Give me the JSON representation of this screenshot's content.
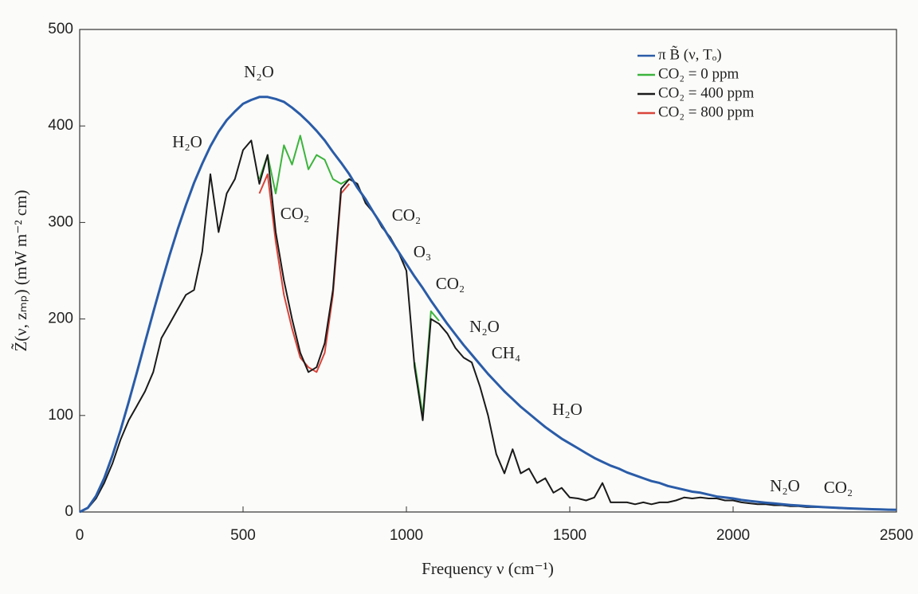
{
  "chart_data": {
    "type": "line",
    "xlabel": "Frequency ν (cm⁻¹)",
    "ylabel": "Z̃(ν, zₘₚ) (mW m⁻² cm)",
    "xlim": [
      0,
      2500
    ],
    "xticks": [
      0,
      500,
      1000,
      1500,
      2000,
      2500
    ],
    "ylim": [
      0,
      500
    ],
    "yticks": [
      0,
      100,
      200,
      300,
      400,
      500
    ],
    "grid": false,
    "legend": "upper right",
    "x": [
      0,
      25,
      50,
      75,
      100,
      125,
      150,
      175,
      200,
      225,
      250,
      275,
      300,
      325,
      350,
      375,
      400,
      425,
      450,
      475,
      500,
      525,
      550,
      575,
      600,
      625,
      650,
      675,
      700,
      725,
      750,
      775,
      800,
      825,
      850,
      875,
      900,
      925,
      950,
      975,
      1000,
      1025,
      1050,
      1075,
      1100,
      1125,
      1150,
      1175,
      1200,
      1225,
      1250,
      1275,
      1300,
      1325,
      1350,
      1375,
      1400,
      1425,
      1450,
      1475,
      1500,
      1525,
      1550,
      1575,
      1600,
      1625,
      1650,
      1675,
      1700,
      1725,
      1750,
      1775,
      1800,
      1825,
      1850,
      1875,
      1900,
      1925,
      1950,
      1975,
      2000,
      2025,
      2050,
      2075,
      2100,
      2125,
      2150,
      2175,
      2200,
      2225,
      2250,
      2275,
      2300,
      2325,
      2350,
      2375,
      2400,
      2425,
      2450,
      2475,
      2500
    ],
    "series": [
      {
        "name": "CO₂ = 0 ppm",
        "color": "#3cb43c",
        "values": [
          null,
          null,
          null,
          null,
          null,
          null,
          null,
          null,
          null,
          null,
          null,
          null,
          null,
          null,
          null,
          null,
          null,
          null,
          null,
          null,
          null,
          null,
          345,
          370,
          330,
          380,
          360,
          390,
          355,
          370,
          365,
          345,
          340,
          345,
          null,
          null,
          null,
          null,
          null,
          null,
          null,
          155,
          100,
          208,
          198,
          null,
          null,
          null,
          null,
          null,
          null,
          null,
          null,
          null,
          null,
          null,
          null,
          null,
          null,
          null,
          null,
          null,
          null,
          null,
          null,
          null,
          null,
          null,
          null,
          null,
          null,
          null,
          null,
          null,
          null,
          null,
          null,
          null,
          null,
          null,
          null,
          null,
          null,
          null,
          null,
          null,
          null,
          null,
          null,
          null,
          null,
          null,
          null,
          null,
          null,
          null,
          null,
          null,
          null,
          null,
          null
        ]
      },
      {
        "name": "CO₂ = 800 ppm",
        "color": "#d9443a",
        "values": [
          null,
          null,
          null,
          null,
          null,
          null,
          null,
          null,
          null,
          null,
          null,
          null,
          null,
          null,
          null,
          null,
          null,
          null,
          null,
          null,
          null,
          null,
          330,
          350,
          280,
          225,
          190,
          160,
          150,
          145,
          165,
          225,
          330,
          340,
          null,
          null,
          null,
          null,
          null,
          null,
          null,
          null,
          null,
          null,
          null,
          null,
          null,
          null,
          null,
          null,
          null,
          null,
          null,
          null,
          null,
          null,
          null,
          null,
          null,
          null,
          null,
          null,
          null,
          null,
          null,
          null,
          null,
          null,
          null,
          null,
          null,
          null,
          null,
          null,
          null,
          null,
          null,
          null,
          null,
          null,
          null,
          null,
          null,
          null,
          null,
          null,
          null,
          null,
          null,
          null,
          null,
          null,
          null,
          null,
          null,
          null,
          null,
          null,
          null,
          null,
          null
        ]
      },
      {
        "name": "CO₂ = 400 ppm",
        "color": "#1a1a1a",
        "values": [
          0,
          4,
          14,
          30,
          50,
          75,
          95,
          110,
          125,
          145,
          180,
          195,
          210,
          225,
          230,
          270,
          350,
          290,
          330,
          345,
          375,
          385,
          340,
          370,
          290,
          240,
          200,
          165,
          145,
          150,
          175,
          230,
          335,
          345,
          340,
          320,
          310,
          295,
          285,
          270,
          250,
          150,
          95,
          200,
          195,
          185,
          170,
          160,
          155,
          130,
          100,
          60,
          40,
          65,
          40,
          45,
          30,
          35,
          20,
          25,
          15,
          14,
          12,
          15,
          30,
          10,
          10,
          10,
          8,
          10,
          8,
          10,
          10,
          12,
          15,
          14,
          15,
          14,
          14,
          12,
          12,
          10,
          9,
          8,
          8,
          7,
          7,
          6,
          6,
          5,
          5,
          5,
          4.5,
          4,
          4,
          3.5,
          3.2,
          3,
          2.6,
          2.4,
          2.2
        ]
      },
      {
        "name": "π B̃ (ν, Tₒ)",
        "color": "#2a5ca8",
        "values": [
          0,
          4.4,
          16.6,
          35.1,
          58.3,
          84.9,
          114,
          144.7,
          175.8,
          206.9,
          237,
          266,
          293,
          318,
          341,
          361,
          379,
          394,
          406,
          415,
          423,
          427,
          430,
          430,
          428,
          425,
          419,
          412,
          404,
          395,
          385,
          373,
          362,
          350,
          336,
          324,
          310,
          297,
          283,
          270,
          257,
          244,
          232,
          219,
          207,
          195,
          184,
          173,
          163,
          153,
          143,
          134,
          125,
          117,
          109,
          102,
          95,
          88,
          82,
          76,
          71,
          66,
          61,
          56,
          52,
          48,
          45,
          41,
          38,
          35,
          32,
          30,
          27,
          25,
          23,
          21,
          20,
          18,
          16,
          15,
          14,
          12.5,
          11.5,
          10.5,
          9.6,
          8.8,
          8,
          7.3,
          6.7,
          6.1,
          5.5,
          5,
          4.6,
          4.2,
          3.8,
          3.5,
          3.2,
          2.9,
          2.6,
          2.4,
          2.2
        ]
      }
    ],
    "annotations": [
      "N₂O",
      "H₂O",
      "CO₂",
      "CO₂",
      "O₃",
      "CO₂",
      "N₂O",
      "CH₄",
      "H₂O",
      "N₂O",
      "CO₂"
    ]
  }
}
